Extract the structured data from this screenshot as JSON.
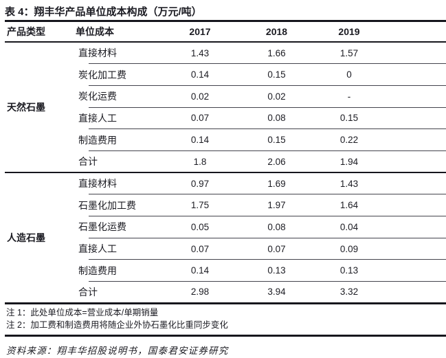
{
  "table": {
    "title": "表 4：翔丰华产品单位成本构成（万元/吨）",
    "columns": [
      "产品类型",
      "单位成本",
      "2017",
      "2018",
      "2019"
    ],
    "groups": [
      {
        "name": "天然石墨",
        "rows": [
          {
            "label": "直接材料",
            "values": [
              "1.43",
              "1.66",
              "1.57"
            ]
          },
          {
            "label": "炭化加工费",
            "values": [
              "0.14",
              "0.15",
              "0"
            ]
          },
          {
            "label": "炭化运费",
            "values": [
              "0.02",
              "0.02",
              "-"
            ]
          },
          {
            "label": "直接人工",
            "values": [
              "0.07",
              "0.08",
              "0.15"
            ]
          },
          {
            "label": "制造费用",
            "values": [
              "0.14",
              "0.15",
              "0.22"
            ]
          },
          {
            "label": "合计",
            "values": [
              "1.8",
              "2.06",
              "1.94"
            ]
          }
        ]
      },
      {
        "name": "人造石墨",
        "rows": [
          {
            "label": "直接材料",
            "values": [
              "0.97",
              "1.69",
              "1.43"
            ]
          },
          {
            "label": "石墨化加工费",
            "values": [
              "1.75",
              "1.97",
              "1.64"
            ]
          },
          {
            "label": "石墨化运费",
            "values": [
              "0.05",
              "0.08",
              "0.04"
            ]
          },
          {
            "label": "直接人工",
            "values": [
              "0.07",
              "0.07",
              "0.09"
            ]
          },
          {
            "label": "制造费用",
            "values": [
              "0.14",
              "0.13",
              "0.13"
            ]
          },
          {
            "label": "合计",
            "values": [
              "2.98",
              "3.94",
              "3.32"
            ]
          }
        ]
      }
    ]
  },
  "notes": [
    "注 1：此处单位成本=营业成本/单期销量",
    "注 2：加工费和制造费用将随企业外协石墨化比重同步变化"
  ],
  "source": "资料来源：翔丰华招股说明书，国泰君安证券研究",
  "colors": {
    "text": "#1b1b22",
    "line_thick": "#16161d",
    "line_thin": "#43434c",
    "background": "#ffffff"
  }
}
